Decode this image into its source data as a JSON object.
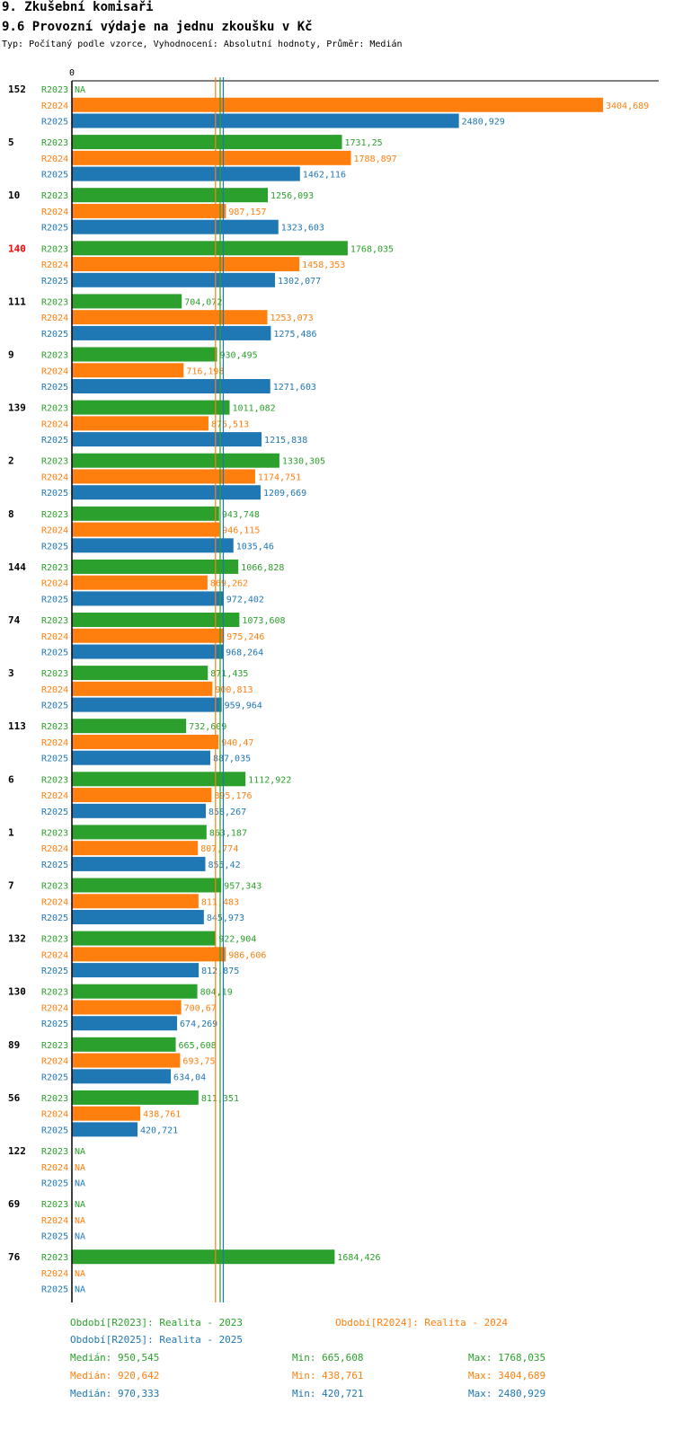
{
  "header": {
    "section": "9. Zkušební komisaři",
    "title": "9.6 Provozní výdaje na jednu zkoušku v Kč",
    "subtitle": "Typ: Počítaný podle vzorce, Vyhodnocení: Absolutní hodnoty, Průměr: Medián"
  },
  "colors": {
    "R2023": "#2ca02c",
    "R2024": "#ff7f0e",
    "R2025": "#1f77b4",
    "highlight": "#ff0000",
    "axis": "#000000"
  },
  "chart_data": {
    "type": "bar",
    "orientation": "horizontal",
    "title": "9.6 Provozní výdaje na jednu zkoušku v Kč",
    "axis_zero_label": "0",
    "xlim": [
      0,
      3404.689
    ],
    "series_names": [
      "R2023",
      "R2024",
      "R2025"
    ],
    "categories": [
      {
        "label": "152",
        "highlight": false,
        "values": [
          null,
          3404.689,
          2480.929
        ],
        "labels": [
          "NA",
          "3404,689",
          "2480,929"
        ]
      },
      {
        "label": "5",
        "highlight": false,
        "values": [
          1731.25,
          1788.897,
          1462.116
        ],
        "labels": [
          "1731,25",
          "1788,897",
          "1462,116"
        ]
      },
      {
        "label": "10",
        "highlight": false,
        "values": [
          1256.093,
          987.157,
          1323.603
        ],
        "labels": [
          "1256,093",
          "987,157",
          "1323,603"
        ]
      },
      {
        "label": "140",
        "highlight": true,
        "values": [
          1768.035,
          1458.353,
          1302.077
        ],
        "labels": [
          "1768,035",
          "1458,353",
          "1302,077"
        ]
      },
      {
        "label": "111",
        "highlight": false,
        "values": [
          704.072,
          1253.073,
          1275.486
        ],
        "labels": [
          "704,072",
          "1253,073",
          "1275,486"
        ]
      },
      {
        "label": "9",
        "highlight": false,
        "values": [
          930.495,
          716.198,
          1271.603
        ],
        "labels": [
          "930,495",
          "716,198",
          "1271,603"
        ]
      },
      {
        "label": "139",
        "highlight": false,
        "values": [
          1011.082,
          875.513,
          1215.838
        ],
        "labels": [
          "1011,082",
          "875,513",
          "1215,838"
        ]
      },
      {
        "label": "2",
        "highlight": false,
        "values": [
          1330.305,
          1174.751,
          1209.669
        ],
        "labels": [
          "1330,305",
          "1174,751",
          "1209,669"
        ]
      },
      {
        "label": "8",
        "highlight": false,
        "values": [
          943.748,
          946.115,
          1035.46
        ],
        "labels": [
          "943,748",
          "946,115",
          "1035,46"
        ]
      },
      {
        "label": "144",
        "highlight": false,
        "values": [
          1066.828,
          869.262,
          972.402
        ],
        "labels": [
          "1066,828",
          "869,262",
          "972,402"
        ]
      },
      {
        "label": "74",
        "highlight": false,
        "values": [
          1073.608,
          975.246,
          968.264
        ],
        "labels": [
          "1073,608",
          "975,246",
          "968,264"
        ]
      },
      {
        "label": "3",
        "highlight": false,
        "values": [
          871.435,
          900.813,
          959.964
        ],
        "labels": [
          "871,435",
          "900,813",
          "959,964"
        ]
      },
      {
        "label": "113",
        "highlight": false,
        "values": [
          732.609,
          940.47,
          887.035
        ],
        "labels": [
          "732,609",
          "940,47",
          "887,035"
        ]
      },
      {
        "label": "6",
        "highlight": false,
        "values": [
          1112.922,
          895.176,
          858.267
        ],
        "labels": [
          "1112,922",
          "895,176",
          "858,267"
        ]
      },
      {
        "label": "1",
        "highlight": false,
        "values": [
          863.187,
          807.774,
          855.42
        ],
        "labels": [
          "863,187",
          "807,774",
          "855,42"
        ]
      },
      {
        "label": "7",
        "highlight": false,
        "values": [
          957.343,
          811.483,
          845.973
        ],
        "labels": [
          "957,343",
          "811,483",
          "845,973"
        ]
      },
      {
        "label": "132",
        "highlight": false,
        "values": [
          922.904,
          986.606,
          812.875
        ],
        "labels": [
          "922,904",
          "986,606",
          "812,875"
        ]
      },
      {
        "label": "130",
        "highlight": false,
        "values": [
          804.19,
          700.67,
          674.269
        ],
        "labels": [
          "804,19",
          "700,67",
          "674,269"
        ]
      },
      {
        "label": "89",
        "highlight": false,
        "values": [
          665.608,
          693.75,
          634.04
        ],
        "labels": [
          "665,608",
          "693,75",
          "634,04"
        ]
      },
      {
        "label": "56",
        "highlight": false,
        "values": [
          811.351,
          438.761,
          420.721
        ],
        "labels": [
          "811,351",
          "438,761",
          "420,721"
        ]
      },
      {
        "label": "122",
        "highlight": false,
        "values": [
          null,
          null,
          null
        ],
        "labels": [
          "NA",
          "NA",
          "NA"
        ]
      },
      {
        "label": "69",
        "highlight": false,
        "values": [
          null,
          null,
          null
        ],
        "labels": [
          "NA",
          "NA",
          "NA"
        ]
      },
      {
        "label": "76",
        "highlight": false,
        "values": [
          1684.426,
          null,
          null
        ],
        "labels": [
          "1684,426",
          "NA",
          "NA"
        ]
      }
    ],
    "medians": [
      950.545,
      920.642,
      970.333
    ]
  },
  "legend": {
    "r2023": "Období[R2023]: Realita - 2023",
    "r2024": "Období[R2024]: Realita - 2024",
    "r2025": "Období[R2025]: Realita - 2025",
    "stats": [
      {
        "median": "Medián: 950,545",
        "min": "Min: 665,608",
        "max": "Max: 1768,035"
      },
      {
        "median": "Medián: 920,642",
        "min": "Min: 438,761",
        "max": "Max: 3404,689"
      },
      {
        "median": "Medián: 970,333",
        "min": "Min: 420,721",
        "max": "Max: 2480,929"
      }
    ]
  }
}
